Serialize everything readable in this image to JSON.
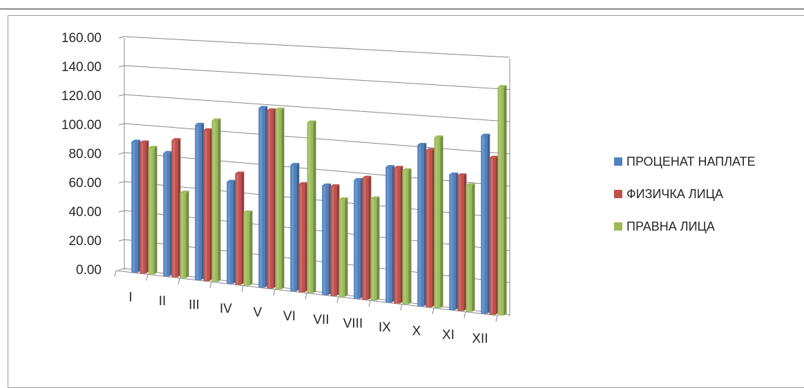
{
  "chart_data": {
    "type": "bar",
    "title": "",
    "xlabel": "",
    "ylabel": "",
    "ylim": [
      0,
      160
    ],
    "yticks": [
      "0.00",
      "20.00",
      "40.00",
      "60.00",
      "80.00",
      "100.00",
      "120.00",
      "140.00",
      "160.00"
    ],
    "categories": [
      "I",
      "II",
      "III",
      "IV",
      "V",
      "VI",
      "VII",
      "VIII",
      "IX",
      "X",
      "XI",
      "XII"
    ],
    "series": [
      {
        "name": "ПРОЦЕНАТ НАПЛАТЕ",
        "color": "#4f81bd",
        "values": [
          86,
          81,
          102,
          67,
          118,
          83,
          72,
          78,
          89,
          106,
          89,
          117
        ]
      },
      {
        "name": "ФИЗИЧКА ЛИЦА",
        "color": "#c0504d",
        "values": [
          86,
          90,
          99,
          73,
          117,
          71,
          72,
          80,
          89,
          103,
          89,
          103
        ]
      },
      {
        "name": "ПРАВНА ЛИЦА",
        "color": "#9bbb59",
        "values": [
          83,
          56,
          106,
          48,
          118,
          112,
          64,
          67,
          88,
          112,
          83,
          150
        ]
      }
    ],
    "grid": true,
    "legend": "right"
  }
}
